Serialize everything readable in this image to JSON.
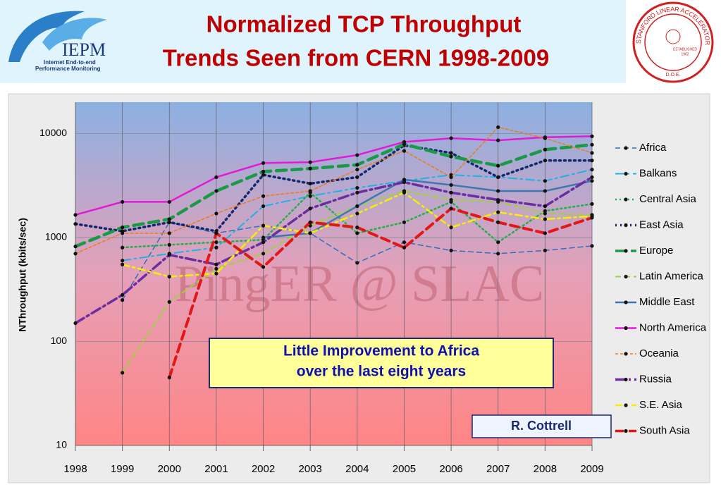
{
  "header": {
    "logo_text": "IEPM",
    "logo_subtext": [
      "Internet End-to-end",
      "Performance Monitoring"
    ],
    "seal_text": "STANFORD LINEAR ACCELERATOR CENTER",
    "seal_established": [
      "ESTABLISHED",
      "1962"
    ],
    "seal_doe": "D.O.E."
  },
  "chart_data": {
    "type": "line",
    "title": [
      "Normalized TCP Throughput",
      "Trends Seen from CERN 1998-2009"
    ],
    "y_label": "NThroughput (kbits/sec)",
    "watermark": "PingER @ SLAC",
    "callout": [
      "Little  Improvement to Africa",
      "over the last eight years"
    ],
    "credit": "R. Cottrell",
    "log_y": true,
    "grid": true,
    "legend": "right",
    "x": [
      1998,
      1999,
      2000,
      2001,
      2002,
      2003,
      2004,
      2005,
      2006,
      2007,
      2008,
      2009
    ],
    "xlim": [
      1998,
      2009
    ],
    "xticks": [
      1998,
      1999,
      2000,
      2001,
      2002,
      2003,
      2004,
      2005,
      2006,
      2007,
      2008,
      2009
    ],
    "ylim": [
      10,
      20000
    ],
    "yticks": [
      10,
      100,
      1000,
      10000
    ],
    "series": [
      {
        "name": "Africa",
        "color": "#2f6fc0",
        "dash": "7,5",
        "width": 1.5,
        "values": [
          null,
          250,
          1400,
          1100,
          1300,
          1100,
          570,
          900,
          750,
          700,
          750,
          830
        ]
      },
      {
        "name": "Balkans",
        "color": "#1fb0e8",
        "dash": "12,5,3,5",
        "width": 2,
        "values": [
          null,
          600,
          700,
          800,
          2000,
          2500,
          3000,
          3500,
          4000,
          3800,
          3500,
          4500
        ]
      },
      {
        "name": "Central Asia",
        "color": "#22b04a",
        "dash": "2,4",
        "width": 2.5,
        "values": [
          null,
          800,
          850,
          900,
          950,
          2700,
          1100,
          1400,
          2200,
          900,
          1800,
          2100
        ]
      },
      {
        "name": "East Asia",
        "color": "#14286e",
        "dash": "2,5",
        "width": 3.5,
        "values": [
          1350,
          1150,
          1400,
          1150,
          4000,
          3300,
          3800,
          7700,
          6500,
          3800,
          5500,
          5500
        ]
      },
      {
        "name": "Europe",
        "color": "#1a9a48",
        "dash": "14,8",
        "width": 4.5,
        "values": [
          820,
          1250,
          1500,
          2800,
          4300,
          4600,
          5000,
          7900,
          6000,
          4900,
          7000,
          7800
        ]
      },
      {
        "name": "Latin America",
        "color": "#9cd33c",
        "dash": "8,5",
        "width": 2,
        "values": [
          null,
          50,
          240,
          500,
          700,
          1300,
          2000,
          2800,
          2300,
          2200,
          1700,
          1650
        ]
      },
      {
        "name": "Middle East",
        "color": "#3d78b0",
        "dash": "none",
        "width": 2.5,
        "values": [
          null,
          null,
          null,
          null,
          1000,
          1100,
          2000,
          3600,
          3200,
          2800,
          2800,
          3500
        ]
      },
      {
        "name": "North America",
        "color": "#e21ad6",
        "dash": "none",
        "width": 2.5,
        "values": [
          1650,
          2200,
          2200,
          3800,
          5200,
          5300,
          6200,
          8300,
          9000,
          8600,
          9200,
          9400
        ]
      },
      {
        "name": "Oceania",
        "color": "#f07a1a",
        "dash": "4,3",
        "width": 1.5,
        "values": [
          700,
          1100,
          1100,
          1700,
          2500,
          2800,
          4500,
          6800,
          3800,
          11500,
          9000,
          6500
        ]
      },
      {
        "name": "Russia",
        "color": "#6a2ea0",
        "dash": "14,5,3,5",
        "width": 3.5,
        "values": [
          150,
          280,
          680,
          550,
          900,
          1900,
          2700,
          3400,
          2700,
          2300,
          2000,
          3800
        ]
      },
      {
        "name": "S.E. Asia",
        "color": "#f4f000",
        "dash": "10,5,3,5",
        "width": 2.5,
        "values": [
          null,
          550,
          420,
          450,
          1300,
          1100,
          1700,
          2700,
          1250,
          1750,
          1500,
          1600
        ]
      },
      {
        "name": "South Asia",
        "color": "#e01818",
        "dash": "12,7",
        "width": 4,
        "values": [
          null,
          null,
          45,
          1100,
          520,
          1400,
          1250,
          800,
          1900,
          1400,
          1100,
          1550
        ]
      }
    ]
  }
}
